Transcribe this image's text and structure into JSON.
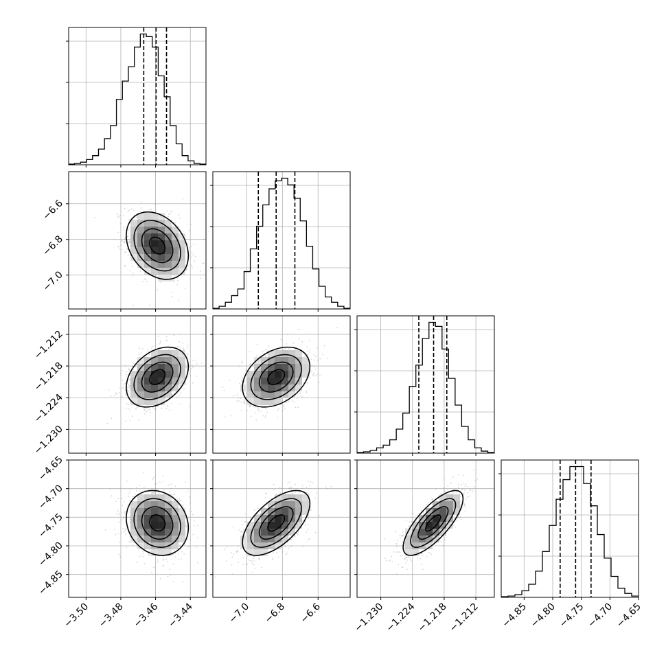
{
  "chart_data": {
    "type": "corner",
    "title": "",
    "grid": true,
    "parameters": [
      {
        "range": [
          -3.51,
          -3.431
        ],
        "ticks": [
          -3.5,
          -3.48,
          -3.46,
          -3.44
        ],
        "tick_labels": [
          "−3.50",
          "−3.48",
          "−3.46",
          "−3.44"
        ],
        "quantiles": [
          -3.4668,
          -3.4597,
          -3.4537
        ],
        "hist_bins": [
          0.005,
          0.01,
          0.02,
          0.04,
          0.07,
          0.12,
          0.2,
          0.3,
          0.5,
          0.64,
          0.75,
          0.9,
          1.0,
          0.98,
          0.9,
          0.68,
          0.52,
          0.3,
          0.16,
          0.07,
          0.03,
          0.01,
          0.005
        ],
        "mean": -3.459,
        "sigma": 0.0085
      },
      {
        "range": [
          -7.19,
          -6.42
        ],
        "ticks": [
          -7.0,
          -6.8,
          -6.6
        ],
        "tick_labels": [
          "−7.0",
          "−6.8",
          "−6.6"
        ],
        "quantiles": [
          -6.935,
          -6.835,
          -6.73
        ],
        "hist_bins": [
          0.005,
          0.02,
          0.05,
          0.1,
          0.15,
          0.28,
          0.45,
          0.62,
          0.78,
          0.9,
          0.96,
          0.98,
          0.93,
          0.83,
          0.66,
          0.47,
          0.3,
          0.17,
          0.09,
          0.05,
          0.02,
          0.005
        ],
        "mean": -6.835,
        "sigma": 0.09
      },
      {
        "range": [
          -1.2345,
          -1.2085
        ],
        "ticks": [
          -1.23,
          -1.224,
          -1.218,
          -1.212
        ],
        "tick_labels": [
          "−1.230",
          "−1.224",
          "−1.218",
          "−1.212"
        ],
        "quantiles": [
          -1.2228,
          -1.22,
          -1.2175
        ],
        "hist_bins": [
          0.005,
          0.01,
          0.02,
          0.04,
          0.06,
          0.1,
          0.18,
          0.3,
          0.5,
          0.66,
          0.86,
          0.98,
          0.95,
          0.78,
          0.56,
          0.36,
          0.2,
          0.1,
          0.04,
          0.015,
          0.005
        ],
        "mean": -1.2201,
        "sigma": 0.0027
      },
      {
        "range": [
          -4.89,
          -4.65
        ],
        "ticks": [
          -4.85,
          -4.8,
          -4.75,
          -4.7,
          -4.65
        ],
        "tick_labels": [
          "−4.85",
          "−4.80",
          "−4.75",
          "−4.70",
          "−4.65"
        ],
        "quantiles": [
          -4.787,
          -4.76,
          -4.733
        ],
        "hist_bins": [
          0.005,
          0.01,
          0.02,
          0.05,
          0.1,
          0.2,
          0.35,
          0.55,
          0.75,
          0.9,
          1.0,
          1.0,
          0.87,
          0.7,
          0.48,
          0.3,
          0.16,
          0.07,
          0.03,
          0.01
        ],
        "mean": -4.76,
        "sigma": 0.027
      }
    ],
    "correlations": [
      [
        1,
        0,
        0,
        0
      ],
      [
        -0.3,
        1,
        0,
        0
      ],
      [
        0.35,
        0.35,
        1,
        0
      ],
      [
        -0.15,
        0.6,
        0.75,
        1
      ]
    ],
    "contour_levels_sigma": [
      0.5,
      1.0,
      1.5,
      2.0
    ]
  }
}
